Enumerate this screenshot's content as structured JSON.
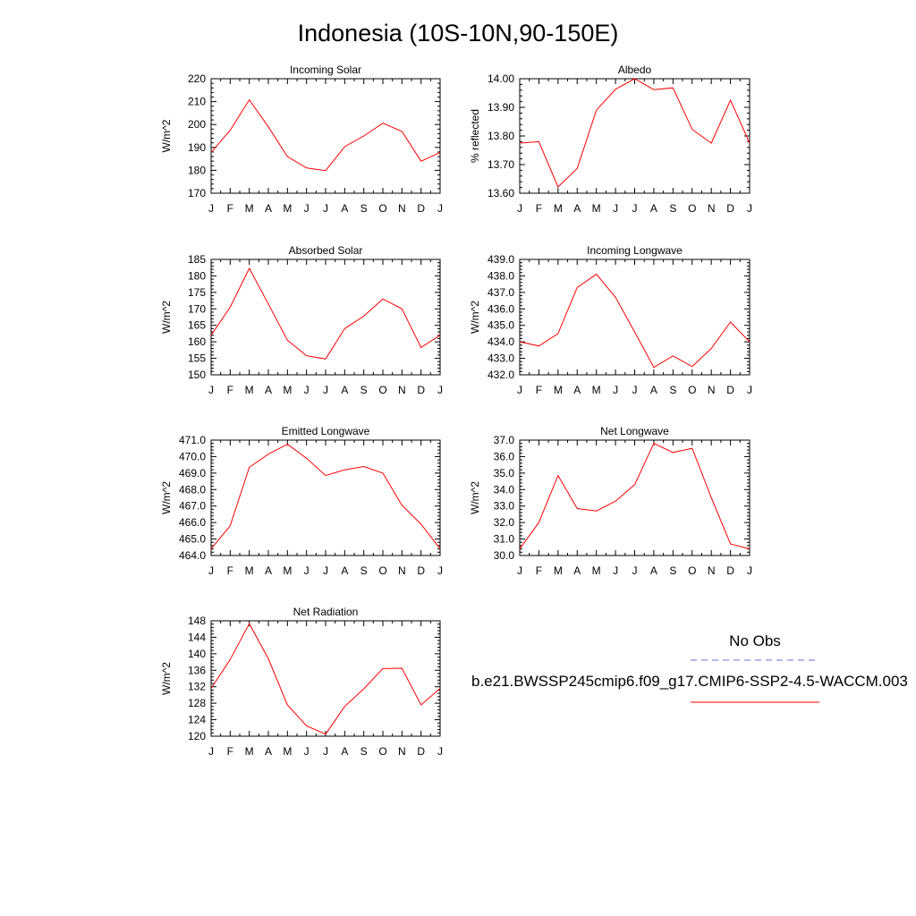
{
  "page": {
    "title": "Indonesia (10S-10N,90-150E)"
  },
  "months": [
    "J",
    "F",
    "M",
    "A",
    "M",
    "J",
    "J",
    "A",
    "S",
    "O",
    "N",
    "D",
    "J"
  ],
  "legend": {
    "obs_label": "No Obs",
    "obs_color": "#6f6fd8",
    "model_label": "b.e21.BWSSP245cmip6.f09_g17.CMIP6-SSP2-4.5-WACCM.003",
    "model_color": "#ff0000"
  },
  "chart_data": [
    {
      "type": "line",
      "title": "Incoming Solar",
      "ylabel": "W/m^2",
      "ylim": [
        170,
        220
      ],
      "yticks": [
        "170",
        "180",
        "190",
        "200",
        "210",
        "220"
      ],
      "series": [
        {
          "values": [
            187.8,
            197.5,
            210.8,
            199.0,
            186.0,
            181.0,
            179.9,
            190.3,
            195.0,
            200.6,
            197.0,
            184.0,
            187.8
          ]
        }
      ]
    },
    {
      "type": "line",
      "title": "Albedo",
      "ylabel": "% reflected",
      "ylim": [
        13.6,
        14.0
      ],
      "yticks": [
        "13.60",
        "13.70",
        "13.80",
        "13.90",
        "14.00"
      ],
      "series": [
        {
          "values": [
            13.775,
            13.78,
            13.622,
            13.687,
            13.89,
            13.963,
            14.0,
            13.962,
            13.968,
            13.823,
            13.775,
            13.925,
            13.775
          ]
        }
      ]
    },
    {
      "type": "line",
      "title": "Absorbed Solar",
      "ylabel": "W/m^2",
      "ylim": [
        150,
        185
      ],
      "yticks": [
        "150",
        "155",
        "160",
        "165",
        "170",
        "175",
        "180",
        "185"
      ],
      "series": [
        {
          "values": [
            162.0,
            170.5,
            182.3,
            171.5,
            160.5,
            155.8,
            154.8,
            164.0,
            167.8,
            173.0,
            170.0,
            158.3,
            162.0
          ]
        }
      ]
    },
    {
      "type": "line",
      "title": "Incoming Longwave",
      "ylabel": "W/m^2",
      "ylim": [
        432.0,
        439.0
      ],
      "yticks": [
        "432.0",
        "433.0",
        "434.0",
        "435.0",
        "436.0",
        "437.0",
        "438.0",
        "439.0"
      ],
      "series": [
        {
          "values": [
            434.0,
            433.75,
            434.5,
            437.3,
            438.1,
            436.7,
            434.6,
            432.45,
            433.15,
            432.5,
            433.6,
            435.2,
            434.0
          ]
        }
      ]
    },
    {
      "type": "line",
      "title": "Emitted Longwave",
      "ylabel": "W/m^2",
      "ylim": [
        464.0,
        471.0
      ],
      "yticks": [
        "464.0",
        "465.0",
        "466.0",
        "467.0",
        "468.0",
        "469.0",
        "470.0",
        "471.0"
      ],
      "series": [
        {
          "values": [
            464.4,
            465.8,
            469.35,
            470.15,
            470.75,
            469.9,
            468.85,
            469.2,
            469.4,
            469.0,
            467.05,
            465.9,
            464.4
          ]
        }
      ]
    },
    {
      "type": "line",
      "title": "Net Longwave",
      "ylabel": "W/m^2",
      "ylim": [
        30.0,
        37.0
      ],
      "yticks": [
        "30.0",
        "31.0",
        "32.0",
        "33.0",
        "34.0",
        "35.0",
        "36.0",
        "37.0"
      ],
      "series": [
        {
          "values": [
            30.4,
            32.0,
            34.85,
            32.85,
            32.7,
            33.3,
            34.3,
            36.8,
            36.25,
            36.5,
            33.5,
            30.7,
            30.4
          ]
        }
      ]
    },
    {
      "type": "line",
      "title": "Net Radiation",
      "ylabel": "W/m^2",
      "ylim": [
        120,
        148
      ],
      "yticks": [
        "120",
        "124",
        "128",
        "132",
        "136",
        "140",
        "144",
        "148"
      ],
      "series": [
        {
          "values": [
            131.6,
            138.6,
            147.3,
            138.8,
            127.6,
            122.5,
            120.5,
            127.2,
            131.5,
            136.4,
            136.5,
            127.6,
            131.6
          ]
        }
      ]
    }
  ]
}
